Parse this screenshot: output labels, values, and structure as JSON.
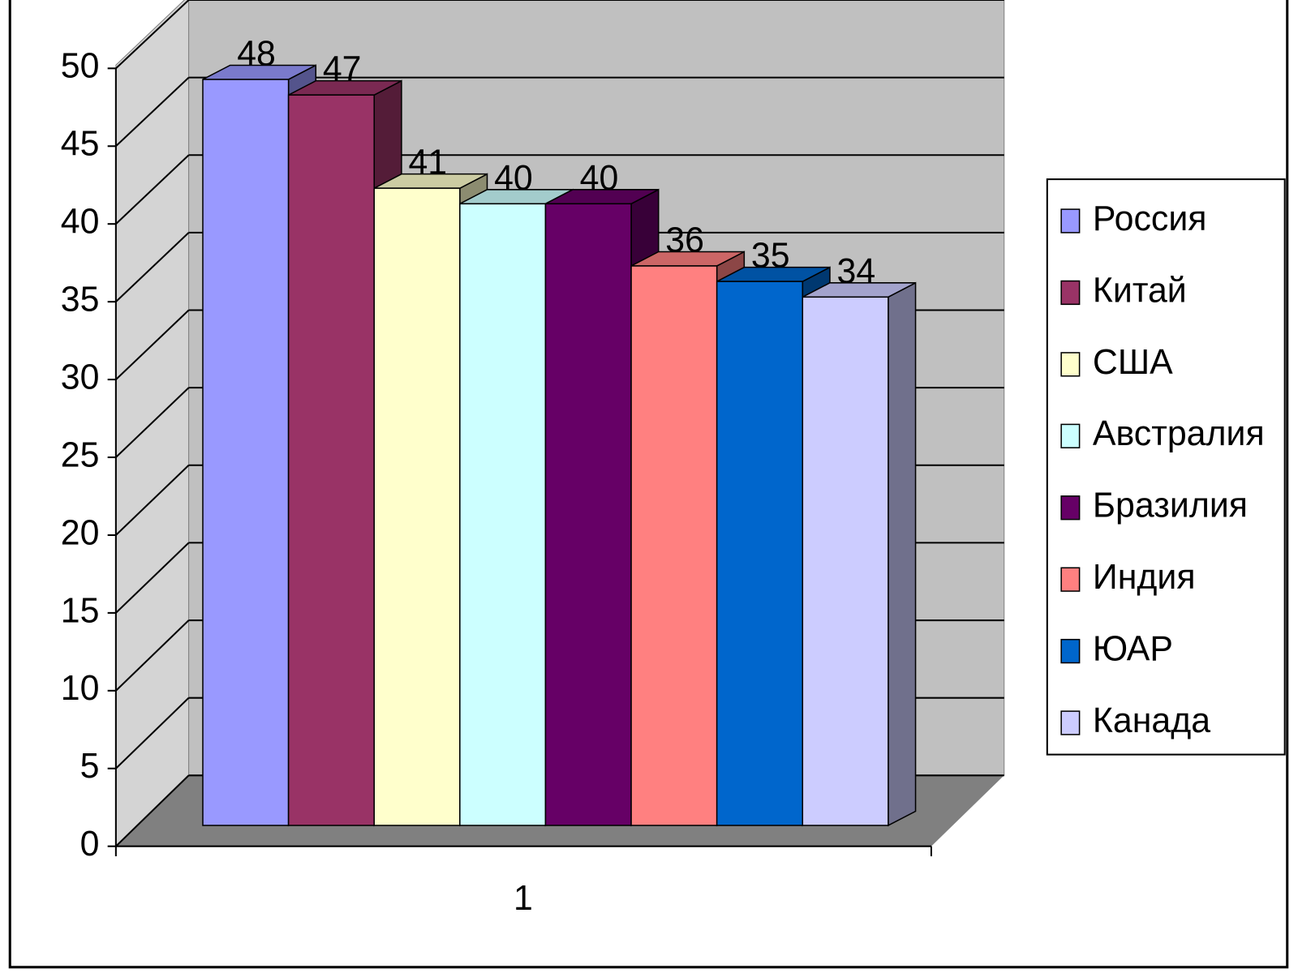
{
  "chart_data": {
    "type": "bar3d",
    "categories": [
      "1"
    ],
    "series": [
      {
        "name": "Россия",
        "color": "#9999ff",
        "values": [
          48
        ]
      },
      {
        "name": "Китай",
        "color": "#993366",
        "values": [
          47
        ]
      },
      {
        "name": "США",
        "color": "#ffffcc",
        "values": [
          41
        ]
      },
      {
        "name": "Австралия",
        "color": "#ccffff",
        "values": [
          40
        ]
      },
      {
        "name": "Бразилия",
        "color": "#660066",
        "values": [
          40
        ]
      },
      {
        "name": "Индия",
        "color": "#ff8080",
        "values": [
          36
        ]
      },
      {
        "name": "ЮАР",
        "color": "#0066cc",
        "values": [
          35
        ]
      },
      {
        "name": "Канада",
        "color": "#ccccff",
        "values": [
          34
        ]
      }
    ],
    "ylim": [
      0,
      50
    ],
    "yticks": [
      0,
      5,
      10,
      15,
      20,
      25,
      30,
      35,
      40,
      45,
      50
    ],
    "grid": true,
    "legend": "right"
  }
}
